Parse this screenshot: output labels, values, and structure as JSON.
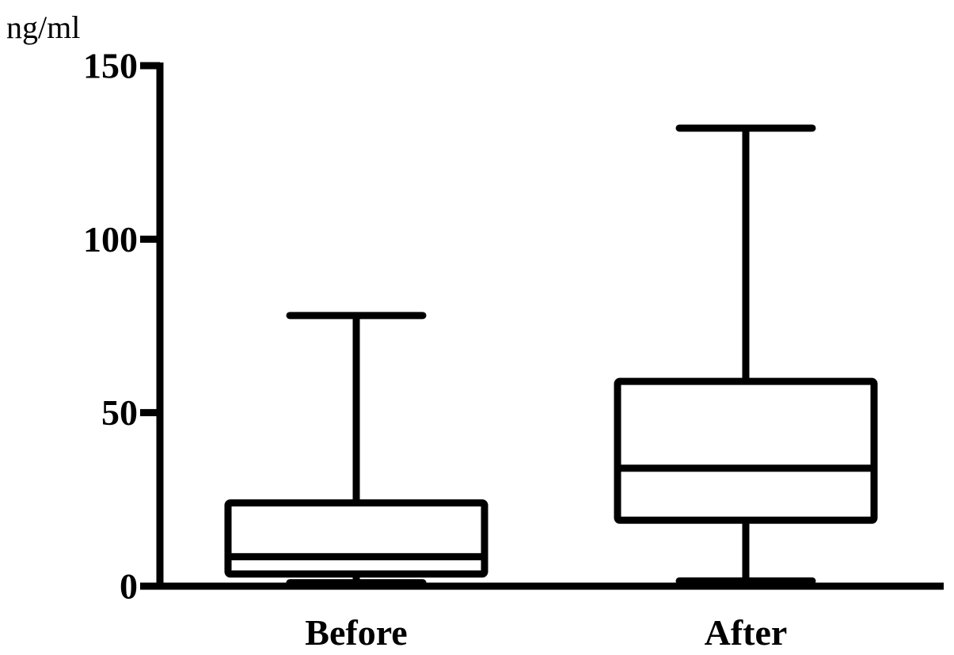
{
  "chart_data": {
    "type": "box",
    "ylabel": "ng/ml",
    "ylim": [
      0,
      150
    ],
    "yticks": [
      0,
      50,
      100,
      150
    ],
    "ytick_labels": [
      "0",
      "50",
      "100",
      "150"
    ],
    "categories": [
      "Before",
      "After"
    ],
    "boxes": [
      {
        "category": "Before",
        "min": 1,
        "q1": 3.5,
        "median": 8.5,
        "q3": 24,
        "max": 78
      },
      {
        "category": "After",
        "min": 1.5,
        "q1": 19,
        "median": 34,
        "q3": 59,
        "max": 132
      }
    ],
    "grid": false,
    "legend": "none",
    "colors": {
      "stroke": "#000000",
      "background": "#ffffff"
    }
  }
}
